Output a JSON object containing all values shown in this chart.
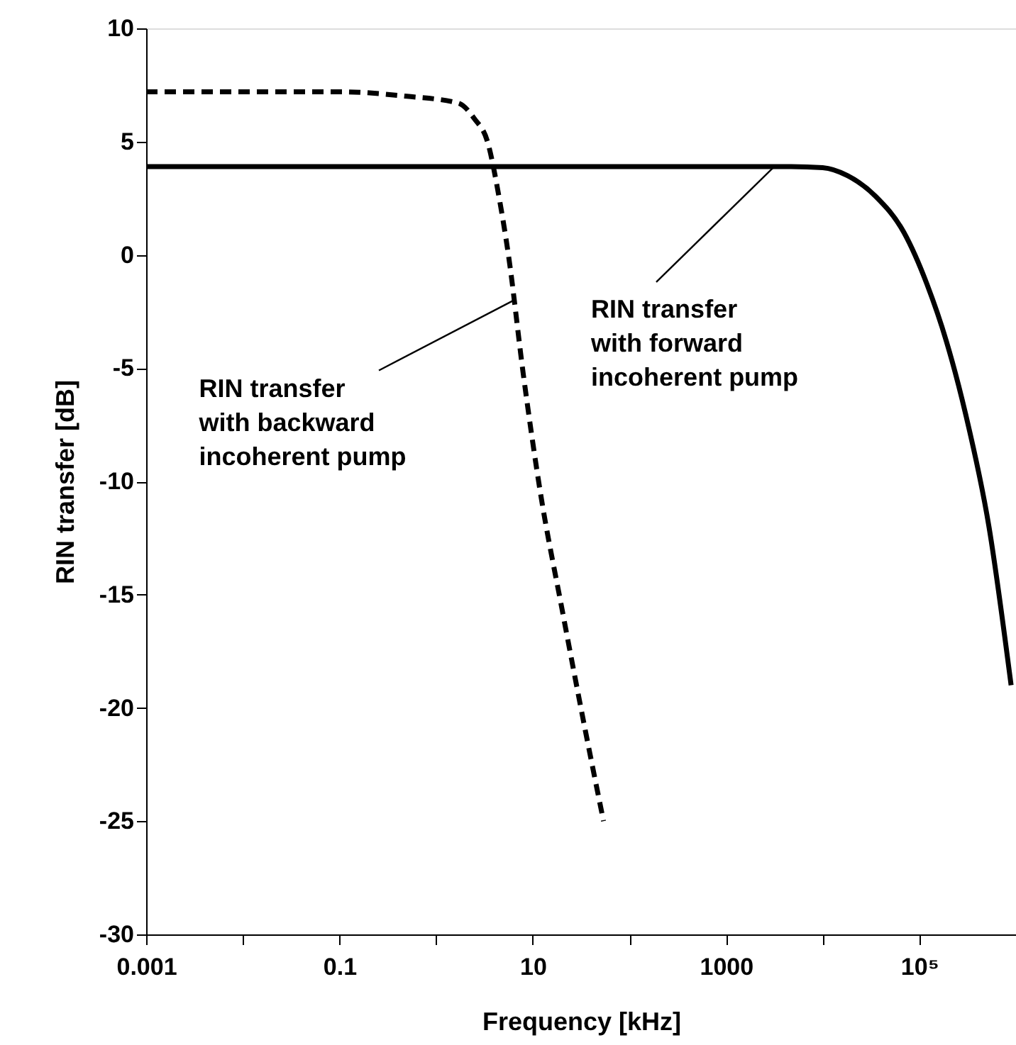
{
  "chart_data": {
    "type": "line",
    "xlabel": "Frequency [kHz]",
    "ylabel": "RIN transfer [dB]",
    "log": "x",
    "grid": false,
    "marker": "none",
    "xlim": [
      0.001,
      1000000
    ],
    "ylim": [
      -30,
      10
    ],
    "xticks": [
      0.001,
      {
        "value": 0.01,
        "label": null
      },
      0.1,
      {
        "value": 1,
        "label": null
      },
      10,
      {
        "value": 100,
        "label": null
      },
      1000,
      {
        "value": 10000,
        "label": null
      },
      {
        "value": 100000,
        "label": "10⁵"
      },
      {
        "value": 1000000,
        "label": null
      }
    ],
    "yticks": [
      -30,
      -25,
      -20,
      -15,
      -10,
      -5,
      0,
      5,
      10
    ],
    "series": [
      {
        "color": "#000000",
        "line_style": "dashed",
        "x": [
          0.001,
          0.01,
          0.1,
          0.5,
          1.7,
          2.5,
          3.4,
          4.5,
          5.6,
          8,
          12,
          20,
          35,
          54
        ],
        "values": [
          7.2,
          7.2,
          7.2,
          7.0,
          6.7,
          6.0,
          5.0,
          2.5,
          0,
          -5.3,
          -10.5,
          -15.6,
          -21,
          -25
        ]
      },
      {
        "color": "#000000",
        "line_style": "solid",
        "x": [
          0.001,
          1,
          100,
          1000,
          4700,
          10000,
          18000,
          35000,
          69000,
          120000,
          190000,
          300000,
          525000,
          890000
        ],
        "values": [
          3.9,
          3.9,
          3.9,
          3.9,
          3.9,
          3.85,
          3.5,
          2.6,
          1,
          -1.3,
          -3.8,
          -7,
          -12,
          -19
        ]
      }
    ],
    "annotations": [
      {
        "text": "RIN transfer\nwith backward\nincoherent pump",
        "x": 6.4,
        "y": -2
      },
      {
        "text": "RIN transfer\nwith forward\nincoherent pump",
        "x": 3160,
        "y": 3.9
      }
    ]
  }
}
